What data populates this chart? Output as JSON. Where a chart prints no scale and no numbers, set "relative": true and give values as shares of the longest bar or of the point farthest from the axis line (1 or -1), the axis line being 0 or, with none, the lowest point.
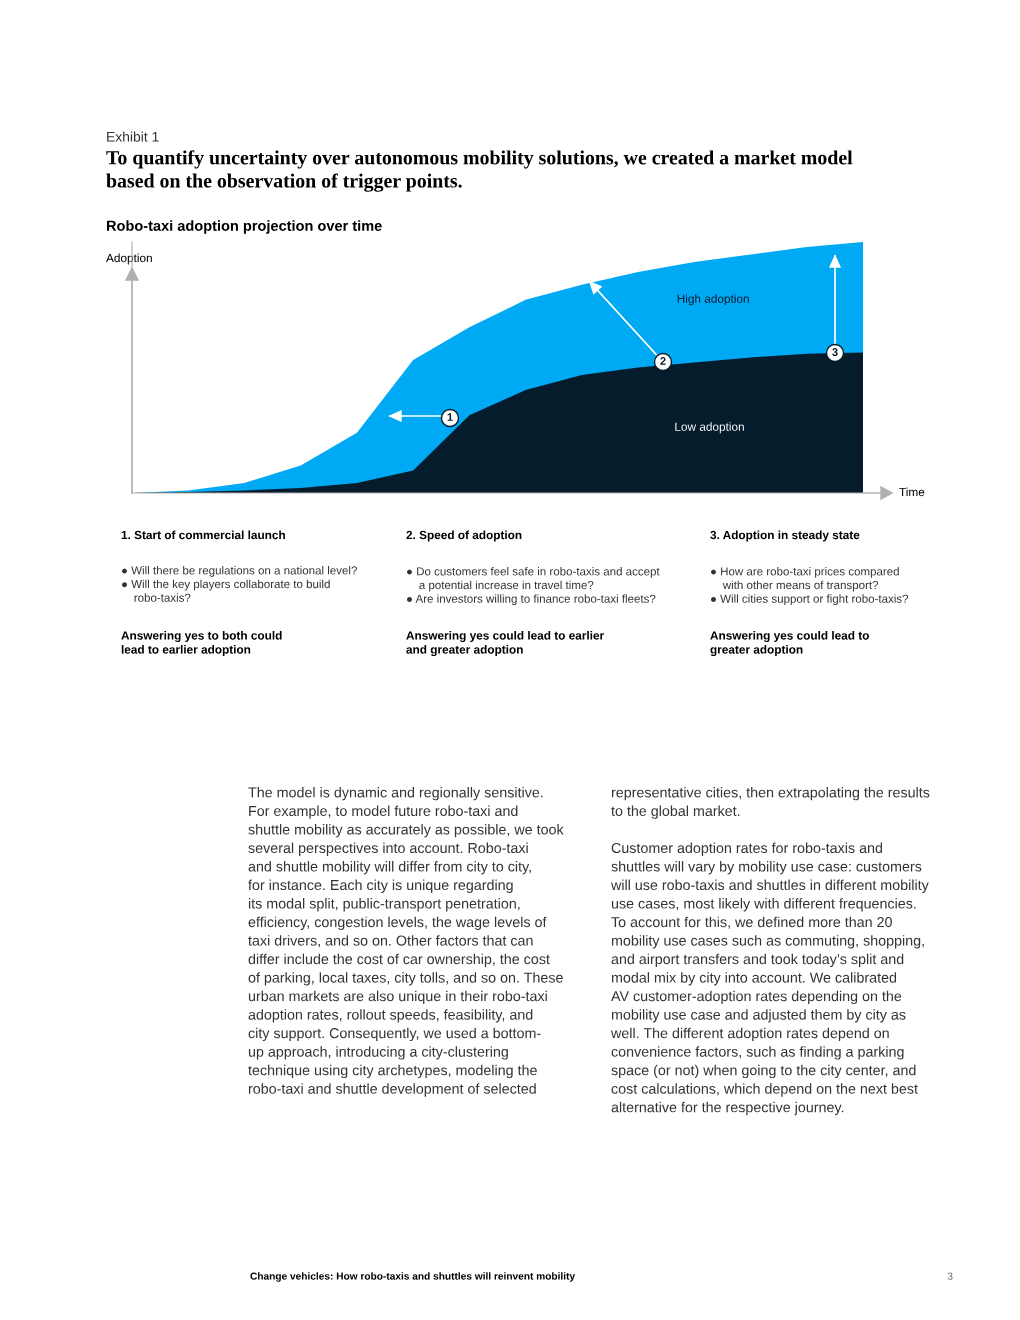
{
  "chart_data": {
    "type": "area",
    "relative": true,
    "title": "To quantify uncertainty over autonomous mobility solutions, we created a market model\nbased on the observation of trigger points.",
    "subtitle": "Robo-taxi adoption projection over time",
    "xlabel": "Time",
    "ylabel": "Adoption",
    "categories": [
      null,
      null,
      null,
      null,
      null,
      null,
      null,
      null,
      null,
      null,
      null,
      null,
      null,
      null
    ],
    "series": [
      {
        "name": "High adoption",
        "color": "#00a9f4",
        "values": [
          0,
          0.01,
          0.04,
          0.11,
          0.24,
          0.53,
          0.66,
          0.77,
          0.83,
          0.88,
          0.92,
          0.95,
          0.98,
          1
        ]
      },
      {
        "name": "Low adoption",
        "color": "#051c2c",
        "values": [
          0,
          0.004,
          0.01,
          0.02,
          0.04,
          0.09,
          0.31,
          0.41,
          0.47,
          0.5,
          0.52,
          0.54,
          0.555,
          0.56
        ]
      }
    ],
    "annotations": [
      "Exhibit 1",
      "1. Start of commercial launch",
      "● Will there be regulations on a national level?\n● Will the key players collaborate to build\n    robo-taxis?",
      "Answering yes to both could\nlead to earlier adoption",
      "2. Speed of adoption",
      "● Do customers feel safe in robo-taxis and accept\n    a potential increase in travel time?\n● Are investors willing to finance robo-taxi fleets?",
      "Answering yes could lead to earlier\nand greater adoption",
      "3. Adoption in steady state",
      "● How are robo-taxi prices compared\n    with other means of transport?\n● Will cities support or fight robo-taxis?",
      "Answering yes could lead to\ngreater adoption",
      "The model is dynamic and regionally sensitive.\nFor example, to model future robo-taxi and\nshuttle mobility as accurately as possible, we took\nseveral perspectives into account. Robo-taxi\nand shuttle mobility will differ from city to city,\nfor instance. Each city is unique regarding\nits modal split, public-transport penetration,\nefficiency, congestion levels, the wage levels of\ntaxi drivers, and so on. Other factors that can\ndiffer include the cost of car ownership, the cost\nof parking, local taxes, city tolls, and so on. These\nurban markets are also unique in their robo-taxi\nadoption rates, rollout speeds, feasibility, and\ncity support. Consequently, we used a bottom-\nup approach, introducing a city-clustering\ntechnique using city archetypes, modeling the\nrobo-taxi and shuttle development of selected",
      "representative cities, then extrapolating the results\nto the global market.\n\nCustomer adoption rates for robo-taxis and\nshuttles will vary by mobility use case: customers\nwill use robo-taxis and shuttles in different mobility\nuse cases, most likely with different frequencies.\nTo account for this, we defined more than 20\nmobility use cases such as commuting, shopping,\nand airport transfers and took today’s split and\nmodal mix by city into account. We calibrated\nAV customer-adoption rates depending on the\nmobility use case and adjusted them by city as\nwell. The different adoption rates depend on\nconvenience factors, such as finding a parking\nspace (or not) when going to the city center, and\ncost calculations, which depend on the next best\nalternative for the respective journey.",
      "Change vehicles: How robo-taxis and shuttles will reinvent mobility",
      "3",
      "1",
      "2",
      "3"
    ]
  }
}
